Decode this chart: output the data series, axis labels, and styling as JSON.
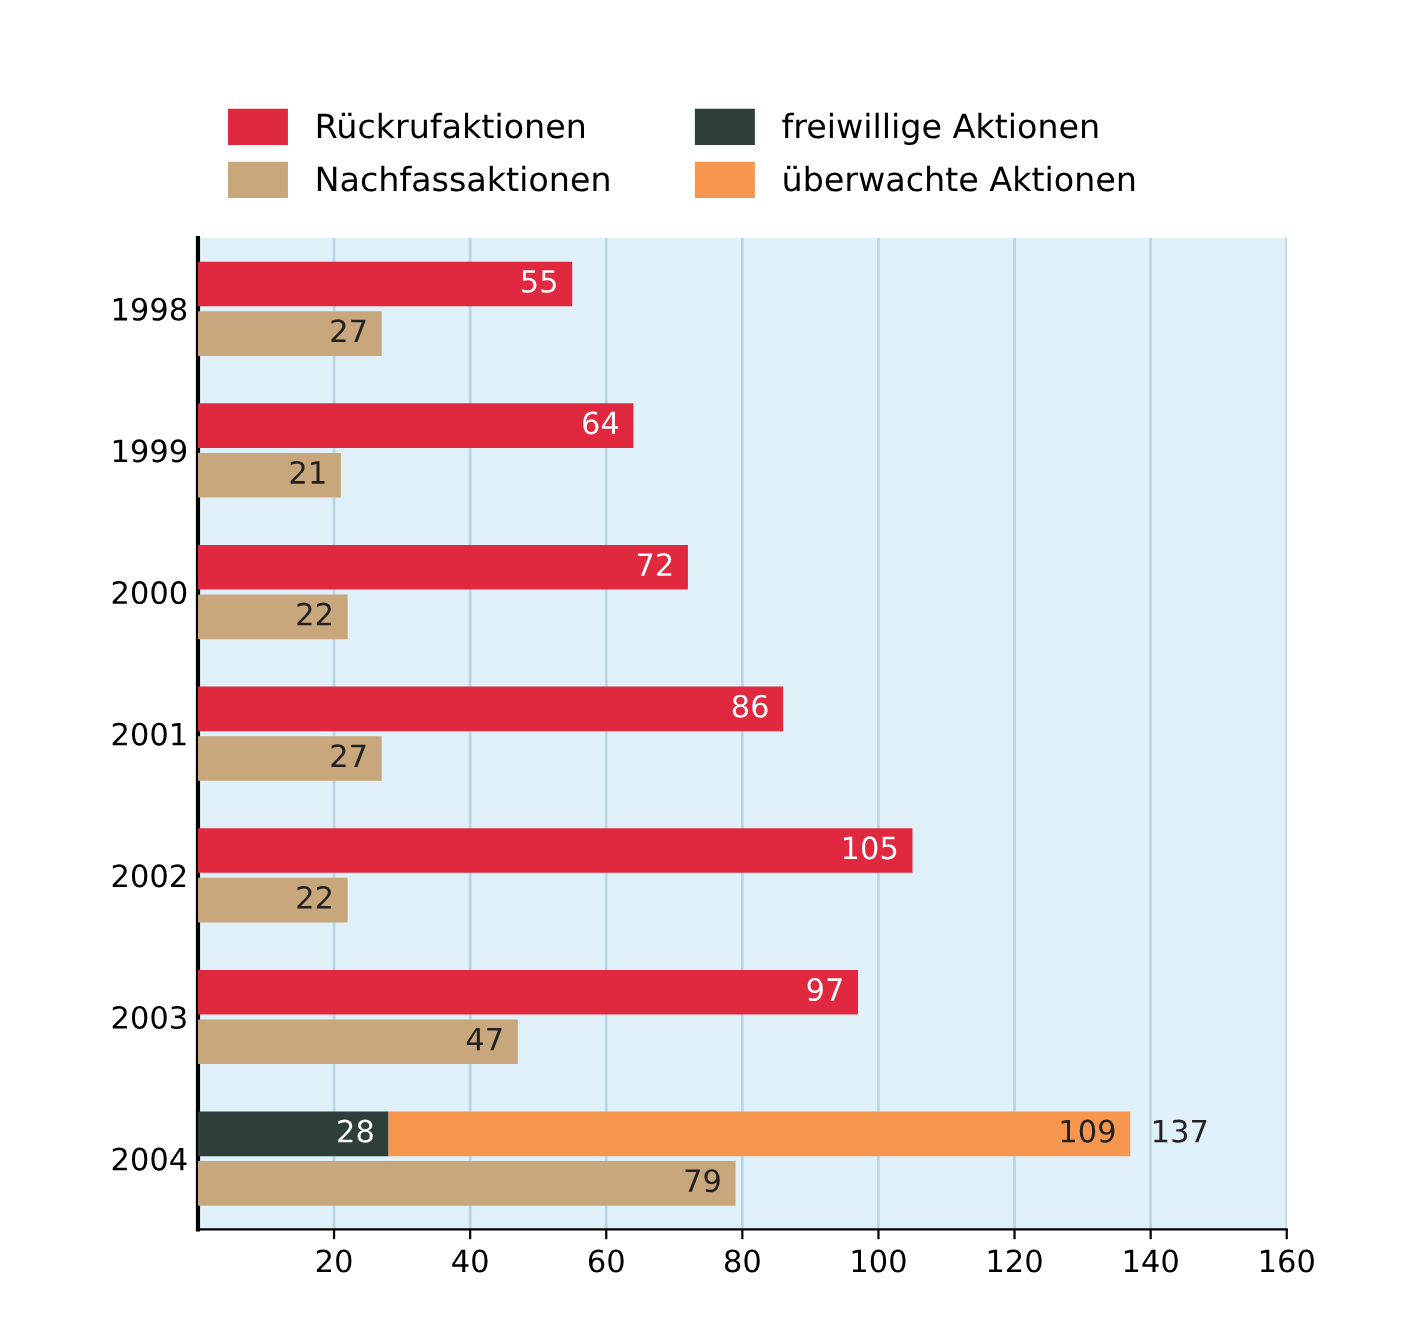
{
  "chart_data": {
    "type": "bar",
    "orientation": "horizontal",
    "categories": [
      "1998",
      "1999",
      "2000",
      "2001",
      "2002",
      "2003",
      "2004"
    ],
    "series": [
      {
        "name": "Rückrufaktionen",
        "color": "#e0283f",
        "values": [
          55,
          64,
          72,
          86,
          105,
          97,
          null
        ]
      },
      {
        "name": "Nachfassaktionen",
        "color": "#c9a77c",
        "values": [
          27,
          21,
          22,
          27,
          22,
          47,
          79
        ]
      },
      {
        "name": "freiwillige Aktionen",
        "color": "#2d3f38",
        "values": [
          null,
          null,
          null,
          null,
          null,
          null,
          28
        ]
      },
      {
        "name": "überwachte Aktionen",
        "color": "#f7964f",
        "values": [
          null,
          null,
          null,
          null,
          null,
          null,
          109
        ],
        "base": [
          null,
          null,
          null,
          null,
          null,
          null,
          28
        ]
      }
    ],
    "annotations": [
      {
        "text": "137",
        "x": 137,
        "y": "2004"
      }
    ],
    "data_labels": true,
    "xlim": [
      0,
      160
    ],
    "xticks": [
      20,
      40,
      60,
      80,
      100,
      120,
      140,
      160
    ],
    "grid": "x",
    "legend": "top left"
  }
}
